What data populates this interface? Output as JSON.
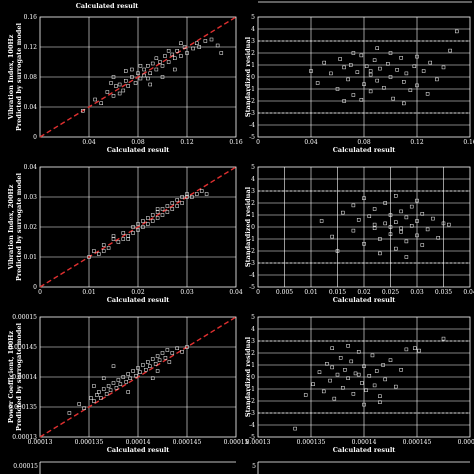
{
  "colors": {
    "background": "#000000",
    "axes": "#ffffff",
    "points": "#ffffff",
    "ideal_line": "#e03030",
    "residual_limits": "#ffffff"
  },
  "top_fragment": {
    "label": "Calculated result",
    "right_ticks": [
      "",
      "",
      "",
      "",
      "",
      ""
    ]
  },
  "chart_data": [
    {
      "type": "scatter",
      "panel": "A",
      "row": 0,
      "col": 0,
      "xlabel": "Calculated result",
      "ylabel": "Vibration Index, 100Hz\nPredicted by surrogate model",
      "xlim": [
        0,
        0.16
      ],
      "ylim": [
        0,
        0.16
      ],
      "xticks": [
        "",
        "0.04",
        "0.08",
        "0.12",
        "0.16"
      ],
      "yticks": [
        "0",
        "0.04",
        "0.08",
        "0.12",
        "0.16"
      ],
      "ideal_line": true,
      "points": [
        [
          0.035,
          0.035
        ],
        [
          0.045,
          0.05
        ],
        [
          0.05,
          0.045
        ],
        [
          0.055,
          0.06
        ],
        [
          0.06,
          0.055
        ],
        [
          0.062,
          0.068
        ],
        [
          0.065,
          0.07
        ],
        [
          0.068,
          0.062
        ],
        [
          0.07,
          0.075
        ],
        [
          0.072,
          0.068
        ],
        [
          0.075,
          0.08
        ],
        [
          0.078,
          0.072
        ],
        [
          0.08,
          0.085
        ],
        [
          0.082,
          0.078
        ],
        [
          0.085,
          0.09
        ],
        [
          0.085,
          0.082
        ],
        [
          0.088,
          0.095
        ],
        [
          0.09,
          0.085
        ],
        [
          0.092,
          0.098
        ],
        [
          0.095,
          0.09
        ],
        [
          0.098,
          0.1
        ],
        [
          0.1,
          0.095
        ],
        [
          0.102,
          0.108
        ],
        [
          0.105,
          0.1
        ],
        [
          0.108,
          0.11
        ],
        [
          0.11,
          0.105
        ],
        [
          0.112,
          0.115
        ],
        [
          0.115,
          0.108
        ],
        [
          0.118,
          0.12
        ],
        [
          0.12,
          0.112
        ],
        [
          0.125,
          0.118
        ],
        [
          0.128,
          0.125
        ],
        [
          0.13,
          0.12
        ],
        [
          0.135,
          0.128
        ],
        [
          0.14,
          0.13
        ],
        [
          0.145,
          0.122
        ],
        [
          0.148,
          0.112
        ],
        [
          0.06,
          0.08
        ],
        [
          0.07,
          0.088
        ],
        [
          0.09,
          0.07
        ],
        [
          0.1,
          0.08
        ],
        [
          0.11,
          0.09
        ],
        [
          0.075,
          0.09
        ],
        [
          0.095,
          0.105
        ],
        [
          0.065,
          0.058
        ],
        [
          0.082,
          0.095
        ],
        [
          0.058,
          0.072
        ],
        [
          0.105,
          0.115
        ],
        [
          0.115,
          0.125
        ],
        [
          0.088,
          0.078
        ]
      ]
    },
    {
      "type": "scatter",
      "panel": "B",
      "row": 0,
      "col": 1,
      "xlabel": "Calculated result",
      "ylabel": "Standardized residual",
      "xlim": [
        0,
        0.16
      ],
      "ylim": [
        -5,
        5
      ],
      "xticks": [
        "0",
        "0.04",
        "0.08",
        "0.12",
        "0.16"
      ],
      "yticks": [
        "-5",
        "-4",
        "-3",
        "-2",
        "-1",
        "0",
        "1",
        "2",
        "3",
        "4",
        "5"
      ],
      "limit_lines": [
        3,
        -3
      ],
      "points": [
        [
          0.04,
          0.5
        ],
        [
          0.045,
          -0.5
        ],
        [
          0.05,
          1.2
        ],
        [
          0.055,
          0.3
        ],
        [
          0.06,
          -1
        ],
        [
          0.062,
          1.5
        ],
        [
          0.065,
          0.8
        ],
        [
          0.068,
          -0.2
        ],
        [
          0.07,
          1
        ],
        [
          0.072,
          -1.5
        ],
        [
          0.075,
          0.4
        ],
        [
          0.078,
          1.8
        ],
        [
          0.08,
          -0.6
        ],
        [
          0.082,
          0.9
        ],
        [
          0.085,
          -1.2
        ],
        [
          0.085,
          0.2
        ],
        [
          0.088,
          1.4
        ],
        [
          0.09,
          -0.3
        ],
        [
          0.092,
          0.7
        ],
        [
          0.095,
          -0.9
        ],
        [
          0.098,
          1.1
        ],
        [
          0.1,
          0
        ],
        [
          0.102,
          -1.8
        ],
        [
          0.105,
          0.6
        ],
        [
          0.108,
          1.6
        ],
        [
          0.11,
          -0.4
        ],
        [
          0.112,
          0.3
        ],
        [
          0.115,
          -1.1
        ],
        [
          0.118,
          0.9
        ],
        [
          0.12,
          -0.7
        ],
        [
          0.125,
          0.5
        ],
        [
          0.128,
          -1.4
        ],
        [
          0.13,
          1.2
        ],
        [
          0.135,
          -0.2
        ],
        [
          0.14,
          0.8
        ],
        [
          0.145,
          2.2
        ],
        [
          0.15,
          3.8
        ],
        [
          0.072,
          2
        ],
        [
          0.09,
          2.4
        ],
        [
          0.11,
          -2.2
        ],
        [
          0.065,
          -2
        ],
        [
          0.1,
          2
        ],
        [
          0.078,
          -1.9
        ],
        [
          0.12,
          1.7
        ],
        [
          0.085,
          0.5
        ]
      ]
    },
    {
      "type": "scatter",
      "panel": "C",
      "row": 1,
      "col": 0,
      "xlabel": "Calculated result",
      "ylabel": "Vibration Index, 200Hz\nPredicted by surrogate model",
      "xlim": [
        0,
        0.04
      ],
      "ylim": [
        0,
        0.04
      ],
      "xticks": [
        "0",
        "0.01",
        "0.02",
        "0.03",
        "0.04"
      ],
      "yticks": [
        "0",
        "0.01",
        "0.02",
        "0.03",
        "0.04"
      ],
      "ideal_line": true,
      "points": [
        [
          0.01,
          0.01
        ],
        [
          0.011,
          0.012
        ],
        [
          0.012,
          0.011
        ],
        [
          0.013,
          0.014
        ],
        [
          0.014,
          0.013
        ],
        [
          0.015,
          0.016
        ],
        [
          0.016,
          0.015
        ],
        [
          0.017,
          0.018
        ],
        [
          0.018,
          0.017
        ],
        [
          0.019,
          0.02
        ],
        [
          0.02,
          0.019
        ],
        [
          0.02,
          0.021
        ],
        [
          0.021,
          0.022
        ],
        [
          0.022,
          0.021
        ],
        [
          0.022,
          0.023
        ],
        [
          0.023,
          0.024
        ],
        [
          0.024,
          0.023
        ],
        [
          0.024,
          0.025
        ],
        [
          0.025,
          0.026
        ],
        [
          0.026,
          0.025
        ],
        [
          0.027,
          0.028
        ],
        [
          0.028,
          0.027
        ],
        [
          0.028,
          0.029
        ],
        [
          0.029,
          0.028
        ],
        [
          0.03,
          0.03
        ],
        [
          0.03,
          0.031
        ],
        [
          0.031,
          0.03
        ],
        [
          0.032,
          0.031
        ],
        [
          0.033,
          0.032
        ],
        [
          0.034,
          0.031
        ],
        [
          0.015,
          0.017
        ],
        [
          0.018,
          0.016
        ],
        [
          0.021,
          0.02
        ],
        [
          0.023,
          0.022
        ],
        [
          0.025,
          0.024
        ],
        [
          0.026,
          0.027
        ],
        [
          0.027,
          0.026
        ],
        [
          0.029,
          0.03
        ],
        [
          0.019,
          0.018
        ],
        [
          0.017,
          0.016
        ],
        [
          0.013,
          0.012
        ],
        [
          0.024,
          0.026
        ]
      ]
    },
    {
      "type": "scatter",
      "panel": "D",
      "row": 1,
      "col": 1,
      "xlabel": "Calculated result",
      "ylabel": "Standardized residual",
      "xlim": [
        0,
        0.04
      ],
      "ylim": [
        -5,
        5
      ],
      "xticks": [
        "0",
        "0.005",
        "0.01",
        "0.015",
        "0.02",
        "0.025",
        "0.03",
        "0.035",
        "0.04"
      ],
      "yticks": [
        "-5",
        "-4",
        "-3",
        "-2",
        "-1",
        "0",
        "1",
        "2",
        "3",
        "4",
        "5"
      ],
      "limit_lines": [
        3,
        -3
      ],
      "points": [
        [
          0.012,
          0.5
        ],
        [
          0.014,
          -0.8
        ],
        [
          0.016,
          1.2
        ],
        [
          0.018,
          -0.3
        ],
        [
          0.019,
          0.6
        ],
        [
          0.02,
          -1.4
        ],
        [
          0.021,
          0.9
        ],
        [
          0.022,
          -0.1
        ],
        [
          0.022,
          1.5
        ],
        [
          0.023,
          -1
        ],
        [
          0.024,
          0.3
        ],
        [
          0.024,
          2
        ],
        [
          0.025,
          -0.6
        ],
        [
          0.025,
          1
        ],
        [
          0.026,
          -1.8
        ],
        [
          0.026,
          0.4
        ],
        [
          0.027,
          1.3
        ],
        [
          0.027,
          -0.4
        ],
        [
          0.028,
          0.8
        ],
        [
          0.028,
          -1.2
        ],
        [
          0.029,
          0.1
        ],
        [
          0.029,
          1.7
        ],
        [
          0.03,
          -0.7
        ],
        [
          0.03,
          0.5
        ],
        [
          0.031,
          -1.5
        ],
        [
          0.031,
          1.1
        ],
        [
          0.032,
          -0.2
        ],
        [
          0.033,
          0.7
        ],
        [
          0.034,
          -0.9
        ],
        [
          0.035,
          0.3
        ],
        [
          0.036,
          0.2
        ],
        [
          0.02,
          2.4
        ],
        [
          0.023,
          -2.2
        ],
        [
          0.026,
          2.6
        ],
        [
          0.028,
          -2.5
        ],
        [
          0.03,
          2.2
        ],
        [
          0.015,
          -2
        ],
        [
          0.018,
          1.8
        ],
        [
          0.022,
          0.2
        ],
        [
          0.025,
          0
        ],
        [
          0.027,
          -0.1
        ]
      ]
    },
    {
      "type": "scatter",
      "panel": "E",
      "row": 2,
      "col": 0,
      "xlabel": "Calculated result",
      "ylabel": "Power Coefficient, 100Hz\nPredicted by surrogate model",
      "xlim": [
        0.00013,
        0.00015
      ],
      "ylim": [
        0.00013,
        0.00015
      ],
      "xticks": [
        "0.00013",
        "0.000135",
        "0.00014",
        "0.000145",
        "0.00015"
      ],
      "yticks": [
        "0.00013",
        "0.000135",
        "0.00014",
        "0.000145",
        "0.00015"
      ],
      "ideal_line": true,
      "points": [
        [
          0.000133,
          0.000134
        ],
        [
          0.000134,
          0.0001355
        ],
        [
          0.0001345,
          0.0001348
        ],
        [
          0.0001352,
          0.0001365
        ],
        [
          0.0001355,
          0.000136
        ],
        [
          0.0001358,
          0.000137
        ],
        [
          0.000136,
          0.0001375
        ],
        [
          0.0001362,
          0.0001365
        ],
        [
          0.0001365,
          0.000138
        ],
        [
          0.0001368,
          0.0001372
        ],
        [
          0.000137,
          0.0001385
        ],
        [
          0.0001372,
          0.0001378
        ],
        [
          0.0001375,
          0.000139
        ],
        [
          0.0001378,
          0.0001382
        ],
        [
          0.000138,
          0.0001395
        ],
        [
          0.0001382,
          0.0001388
        ],
        [
          0.0001385,
          0.00014
        ],
        [
          0.0001388,
          0.0001392
        ],
        [
          0.000139,
          0.0001405
        ],
        [
          0.0001392,
          0.0001398
        ],
        [
          0.0001395,
          0.000141
        ],
        [
          0.0001398,
          0.0001402
        ],
        [
          0.00014,
          0.0001415
        ],
        [
          0.0001402,
          0.0001408
        ],
        [
          0.0001405,
          0.000142
        ],
        [
          0.0001408,
          0.0001412
        ],
        [
          0.000141,
          0.0001425
        ],
        [
          0.0001412,
          0.0001418
        ],
        [
          0.0001415,
          0.000143
        ],
        [
          0.0001418,
          0.0001422
        ],
        [
          0.000142,
          0.0001435
        ],
        [
          0.0001422,
          0.0001428
        ],
        [
          0.0001425,
          0.000144
        ],
        [
          0.0001428,
          0.0001432
        ],
        [
          0.000143,
          0.0001445
        ],
        [
          0.0001435,
          0.000144
        ],
        [
          0.000144,
          0.0001448
        ],
        [
          0.0001445,
          0.0001442
        ],
        [
          0.000145,
          0.000145
        ],
        [
          0.0001365,
          0.0001398
        ],
        [
          0.000139,
          0.0001375
        ],
        [
          0.0001415,
          0.0001398
        ],
        [
          0.0001375,
          0.0001418
        ],
        [
          0.000142,
          0.000141
        ],
        [
          0.0001355,
          0.0001385
        ],
        [
          0.0001432,
          0.0001425
        ]
      ]
    },
    {
      "type": "scatter",
      "panel": "F",
      "row": 2,
      "col": 1,
      "xlabel": "Calculated result",
      "ylabel": "Standardized residual",
      "xlim": [
        0.00013,
        0.00015
      ],
      "ylim": [
        -5,
        5
      ],
      "xticks": [
        "0.00013",
        "0.000135",
        "0.00014",
        "0.000145",
        "0.00015"
      ],
      "yticks": [
        "-5",
        "-4",
        "-3",
        "-2",
        "-1",
        "0",
        "1",
        "2",
        "3",
        "4",
        "5"
      ],
      "limit_lines": [
        3,
        -3
      ],
      "points": [
        [
          0.0001335,
          -4.3
        ],
        [
          0.0001345,
          -1.5
        ],
        [
          0.0001352,
          -0.6
        ],
        [
          0.0001358,
          0.4
        ],
        [
          0.0001362,
          -1.2
        ],
        [
          0.0001365,
          1.1
        ],
        [
          0.0001368,
          -0.3
        ],
        [
          0.000137,
          0.8
        ],
        [
          0.0001372,
          -1.8
        ],
        [
          0.0001375,
          0.2
        ],
        [
          0.0001378,
          1.6
        ],
        [
          0.000138,
          -0.9
        ],
        [
          0.0001382,
          0.6
        ],
        [
          0.0001385,
          -0.1
        ],
        [
          0.0001388,
          1.3
        ],
        [
          0.000139,
          -1.4
        ],
        [
          0.0001392,
          0.3
        ],
        [
          0.0001395,
          2.1
        ],
        [
          0.0001398,
          -0.5
        ],
        [
          0.00014,
          0.9
        ],
        [
          0.0001402,
          -1.1
        ],
        [
          0.0001405,
          0.1
        ],
        [
          0.0001408,
          1.8
        ],
        [
          0.000141,
          -0.7
        ],
        [
          0.0001412,
          0.5
        ],
        [
          0.0001415,
          -1.6
        ],
        [
          0.0001418,
          1
        ],
        [
          0.000142,
          -0.2
        ],
        [
          0.0001425,
          1.4
        ],
        [
          0.000143,
          -0.8
        ],
        [
          0.0001435,
          0.6
        ],
        [
          0.000144,
          2.3
        ],
        [
          0.0001448,
          2.4
        ],
        [
          0.0001452,
          2.2
        ],
        [
          0.0001475,
          3.2
        ],
        [
          0.000137,
          2.4
        ],
        [
          0.00014,
          -2.3
        ],
        [
          0.0001385,
          2.6
        ],
        [
          0.0001415,
          -2.1
        ],
        [
          0.0001395,
          0.2
        ]
      ]
    }
  ],
  "bottom_fragment": {
    "left_tick": "0.00015",
    "right_tick": "5"
  }
}
